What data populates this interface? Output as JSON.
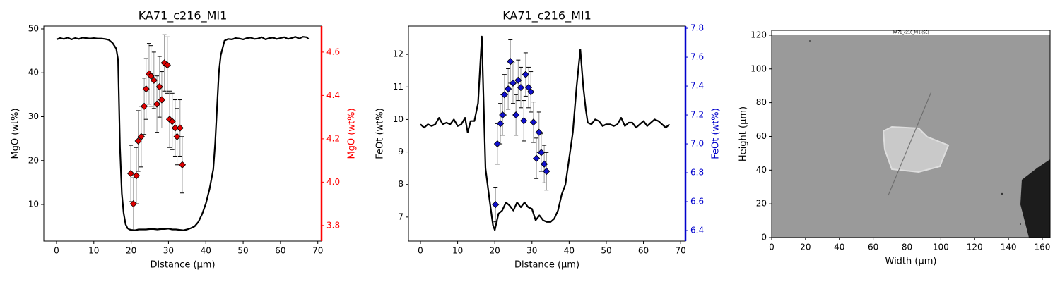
{
  "chart_data": [
    {
      "type": "line",
      "title": "KA71_c216_MI1",
      "xlabel": "Distance (µm)",
      "ylabel": "MgO (wt%)",
      "y2label": "MgO (wt%)",
      "y2color": "#ff0000",
      "xlim": [
        -3.4,
        71.0
      ],
      "xticks": [
        0,
        10,
        20,
        30,
        40,
        50,
        60,
        70
      ],
      "ylim": [
        1.65,
        50.64
      ],
      "yticks": [
        10,
        20,
        30,
        40,
        50
      ],
      "y2lim": [
        3.728,
        4.72
      ],
      "y2ticks": [
        3.8,
        {
          "value": 4,
          "label": "4.0"
        },
        4.2,
        4.4,
        4.6
      ],
      "series": [
        {
          "kind": "line",
          "color": "#000000",
          "x": [
            0,
            1,
            2,
            3,
            4,
            5,
            6,
            7,
            8,
            9,
            10,
            11,
            12,
            13,
            14,
            15,
            16,
            16.5,
            17,
            17.5,
            18,
            18.5,
            19,
            19.5,
            20,
            21,
            22,
            23,
            24,
            25,
            26,
            27,
            28,
            29,
            30,
            31,
            32,
            33,
            34,
            35,
            36,
            37,
            38,
            39,
            40,
            41,
            42,
            42.5,
            43,
            43.5,
            44,
            45,
            46,
            47,
            48,
            49,
            50,
            51,
            52,
            53,
            54,
            55,
            56,
            57,
            58,
            59,
            60,
            61,
            62,
            63,
            64,
            65,
            66,
            67,
            67.5
          ],
          "values": [
            47.6,
            47.9,
            47.7,
            48.0,
            47.6,
            47.9,
            47.7,
            48.0,
            47.9,
            47.8,
            47.9,
            47.8,
            47.8,
            47.7,
            47.5,
            46.8,
            45.5,
            43,
            23,
            12.5,
            8,
            5.5,
            4.6,
            4.3,
            4.2,
            4.1,
            4.3,
            4.3,
            4.3,
            4.4,
            4.4,
            4.3,
            4.4,
            4.4,
            4.5,
            4.3,
            4.3,
            4.2,
            4.1,
            4.3,
            4.6,
            5.0,
            6.0,
            7.8,
            10.2,
            13.5,
            18,
            24,
            32,
            40,
            44,
            47.3,
            47.7,
            47.6,
            47.9,
            47.8,
            47.6,
            47.9,
            48.0,
            47.7,
            47.8,
            48.1,
            47.6,
            47.9,
            48.0,
            47.7,
            47.9,
            48.1,
            47.7,
            47.9,
            48.2,
            47.8,
            48.2,
            48.1,
            47.7
          ]
        },
        {
          "kind": "scatter",
          "axis": "y2",
          "color": "#dd0000",
          "marker": "diamond",
          "x": [
            19.9,
            20.6,
            21.4,
            21.9,
            22.7,
            23.5,
            24.0,
            24.8,
            25.3,
            26.1,
            26.9,
            27.6,
            28.2,
            28.9,
            29.7,
            30.3,
            31.0,
            31.8,
            32.3,
            33.1,
            33.7
          ],
          "values": [
            4.04,
            3.9,
            4.03,
            4.19,
            4.21,
            4.35,
            4.43,
            4.5,
            4.49,
            4.47,
            4.36,
            4.44,
            4.38,
            4.55,
            4.54,
            4.29,
            4.28,
            4.25,
            4.21,
            4.25,
            4.08
          ],
          "errors": [
            0.13,
            0.12,
            0.13,
            0.14,
            0.14,
            0.13,
            0.14,
            0.14,
            0.14,
            0.13,
            0.13,
            0.14,
            0.13,
            0.13,
            0.13,
            0.13,
            0.13,
            0.13,
            0.13,
            0.13,
            0.13
          ]
        }
      ]
    },
    {
      "type": "line",
      "title": "KA71_c216_MI1",
      "xlabel": "Distance (µm)",
      "ylabel": "FeOt (wt%)",
      "y2label": "FeOt (wt%)",
      "y2color": "#0000cc",
      "xlim": [
        -3.23,
        71.3
      ],
      "xticks": [
        0,
        10,
        20,
        30,
        40,
        50,
        60,
        70
      ],
      "ylim": [
        6.26,
        12.87
      ],
      "yticks": [
        7,
        8,
        9,
        10,
        11,
        12
      ],
      "y2lim": [
        6.327,
        7.815
      ],
      "y2ticks": [
        6.4,
        6.6,
        6.8,
        {
          "value": 7,
          "label": "7.0"
        },
        7.2,
        7.4,
        7.6,
        7.8
      ],
      "series": [
        {
          "kind": "line",
          "color": "#000000",
          "x": [
            0,
            1,
            2,
            3,
            4,
            5,
            6,
            7,
            8,
            9,
            10,
            11,
            12,
            12.7,
            13.5,
            14.5,
            15.5,
            16,
            16.5,
            17,
            17.5,
            18.5,
            19.5,
            20,
            21,
            22,
            23,
            24,
            25,
            26,
            27,
            28,
            29,
            30,
            31,
            32,
            33,
            34,
            35,
            36,
            37,
            38,
            39,
            40,
            41,
            42,
            43,
            43.8,
            44.5,
            45,
            46,
            47,
            48,
            49,
            50,
            51,
            52,
            53,
            54,
            55,
            56,
            57,
            58,
            59,
            60,
            61,
            62,
            63,
            64,
            65,
            66,
            67
          ],
          "values": [
            9.85,
            9.75,
            9.85,
            9.8,
            9.85,
            10.05,
            9.85,
            9.9,
            9.85,
            10.0,
            9.8,
            9.85,
            10.05,
            9.6,
            9.95,
            9.95,
            10.5,
            11.5,
            12.55,
            10.5,
            8.5,
            7.6,
            6.75,
            6.6,
            7.1,
            7.2,
            7.45,
            7.35,
            7.2,
            7.45,
            7.3,
            7.45,
            7.3,
            7.25,
            6.9,
            7.05,
            6.9,
            6.85,
            6.85,
            6.95,
            7.2,
            7.7,
            8.0,
            8.8,
            9.6,
            11.0,
            12.15,
            11.0,
            10.3,
            9.9,
            9.85,
            10.0,
            9.95,
            9.8,
            9.85,
            9.85,
            9.8,
            9.85,
            10.05,
            9.8,
            9.9,
            9.9,
            9.75,
            9.85,
            9.95,
            9.8,
            9.9,
            10.0,
            9.95,
            9.85,
            9.75,
            9.85
          ]
        },
        {
          "kind": "scatter",
          "axis": "y2",
          "color": "#1010cc",
          "marker": "diamond",
          "x": [
            20.2,
            20.7,
            21.5,
            22.1,
            22.6,
            23.6,
            24.2,
            24.9,
            25.7,
            26.3,
            27.0,
            27.8,
            28.3,
            29.1,
            29.7,
            30.4,
            31.2,
            31.9,
            32.5,
            33.3,
            33.9
          ],
          "values": [
            6.58,
            7.0,
            7.14,
            7.2,
            7.34,
            7.38,
            7.57,
            7.42,
            7.2,
            7.44,
            7.39,
            7.16,
            7.48,
            7.39,
            7.36,
            7.15,
            6.9,
            7.08,
            6.94,
            6.86,
            6.81
          ],
          "errors": [
            0.12,
            0.14,
            0.14,
            0.14,
            0.14,
            0.14,
            0.15,
            0.14,
            0.14,
            0.14,
            0.14,
            0.14,
            0.15,
            0.14,
            0.14,
            0.14,
            0.14,
            0.14,
            0.13,
            0.13,
            0.13
          ]
        }
      ]
    },
    {
      "type": "image",
      "xlabel": "Width (µm)",
      "ylabel": "Height (µm)",
      "caption": "KA71_c216_MI1 (SE)",
      "xlim": [
        0,
        164.6
      ],
      "xticks": [
        0,
        20,
        40,
        60,
        80,
        100,
        120,
        140,
        160
      ],
      "ylim": [
        0,
        122.9
      ],
      "yticks": [
        0,
        20,
        40,
        60,
        80,
        100,
        120
      ]
    }
  ]
}
